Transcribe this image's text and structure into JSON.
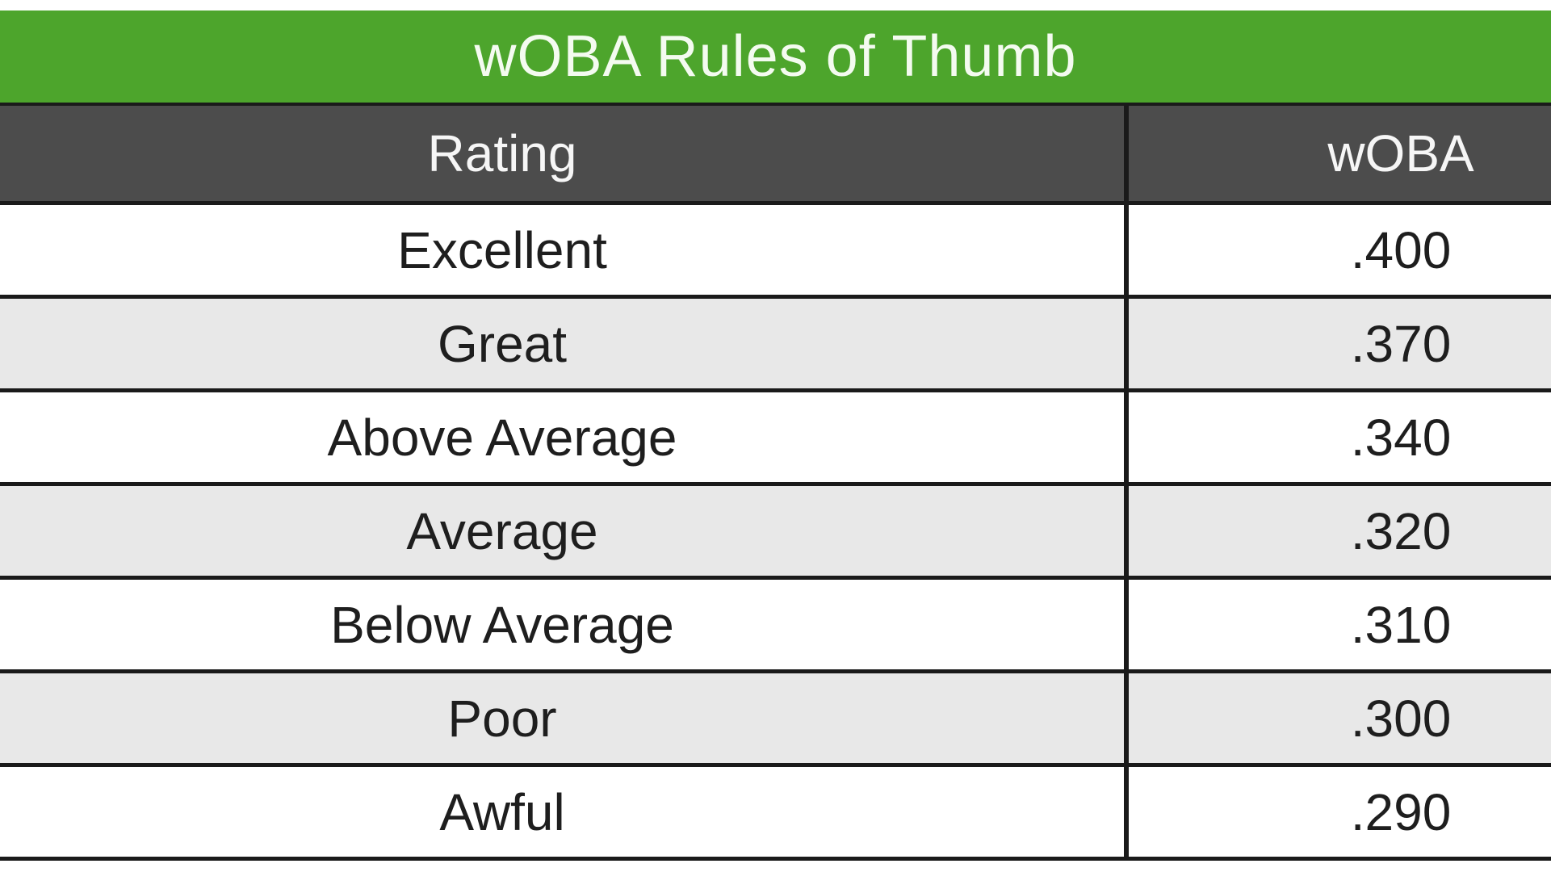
{
  "theme": {
    "page-bg": "#ffffff",
    "green": "#4da52c",
    "line": "#1a1a1a",
    "title-text": "#f4fbf0",
    "header-bg": "#4c4c4c",
    "header-text": "#f6f6f6",
    "row-bg": "#ffffff",
    "row-alt-bg": "#e8e8e8",
    "body-text": "#1e1e1e"
  },
  "table": {
    "title": "wOBA Rules of Thumb",
    "columns": {
      "rating": "Rating",
      "woba": "wOBA"
    },
    "rows": [
      {
        "rating": "Excellent",
        "woba": ".400"
      },
      {
        "rating": "Great",
        "woba": ".370"
      },
      {
        "rating": "Above Average",
        "woba": ".340"
      },
      {
        "rating": "Average",
        "woba": ".320"
      },
      {
        "rating": "Below Average",
        "woba": ".310"
      },
      {
        "rating": "Poor",
        "woba": ".300"
      },
      {
        "rating": "Awful",
        "woba": ".290"
      }
    ]
  },
  "chart_data": {
    "type": "table",
    "title": "wOBA Rules of Thumb",
    "columns": [
      "Rating",
      "wOBA"
    ],
    "rows": [
      [
        "Excellent",
        0.4
      ],
      [
        "Great",
        0.37
      ],
      [
        "Above Average",
        0.34
      ],
      [
        "Average",
        0.32
      ],
      [
        "Below Average",
        0.31
      ],
      [
        "Poor",
        0.3
      ],
      [
        "Awful",
        0.29
      ]
    ],
    "layout_hints": {
      "striped_rows": true,
      "title_bar_color": "#4da52c",
      "header_row_color": "#4c4c4c",
      "value_format": "3-decimal leading-dot"
    }
  }
}
